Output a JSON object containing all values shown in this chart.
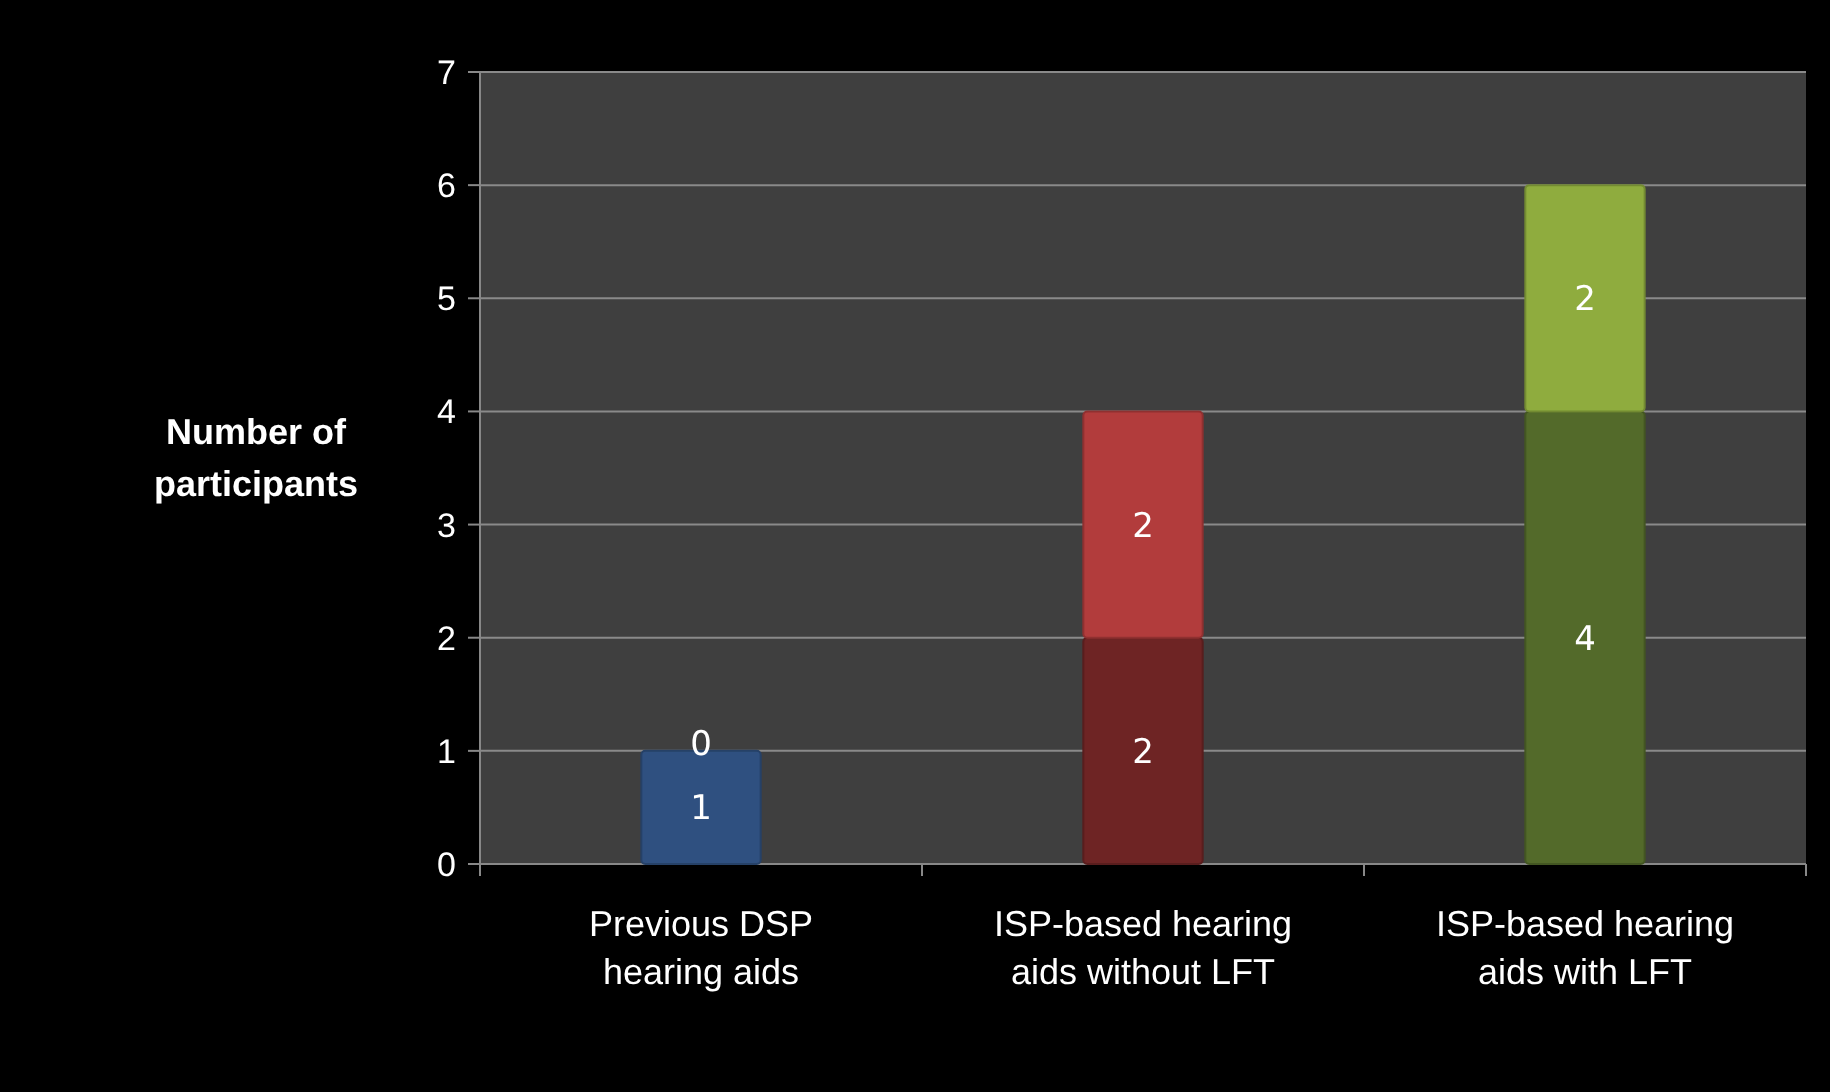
{
  "chart_data": {
    "type": "bar",
    "stacked": true,
    "ylabel": "Number of participants",
    "categories": [
      "Previous DSP hearing aids",
      "ISP-based hearing aids without LFT",
      "ISP-based hearing aids with LFT"
    ],
    "series": [
      {
        "colors": [
          "#2f5080",
          "#6e2424",
          "#536a2a"
        ],
        "values": [
          1,
          2,
          4
        ]
      },
      {
        "colors": [
          "#2f5080",
          "#b23c3c",
          "#8fac3e"
        ],
        "values": [
          0,
          2,
          2
        ]
      }
    ],
    "ylim": [
      0,
      7
    ],
    "yticks": [
      0,
      1,
      2,
      3,
      4,
      5,
      6,
      7
    ],
    "grid": "y",
    "data_labels": true
  }
}
